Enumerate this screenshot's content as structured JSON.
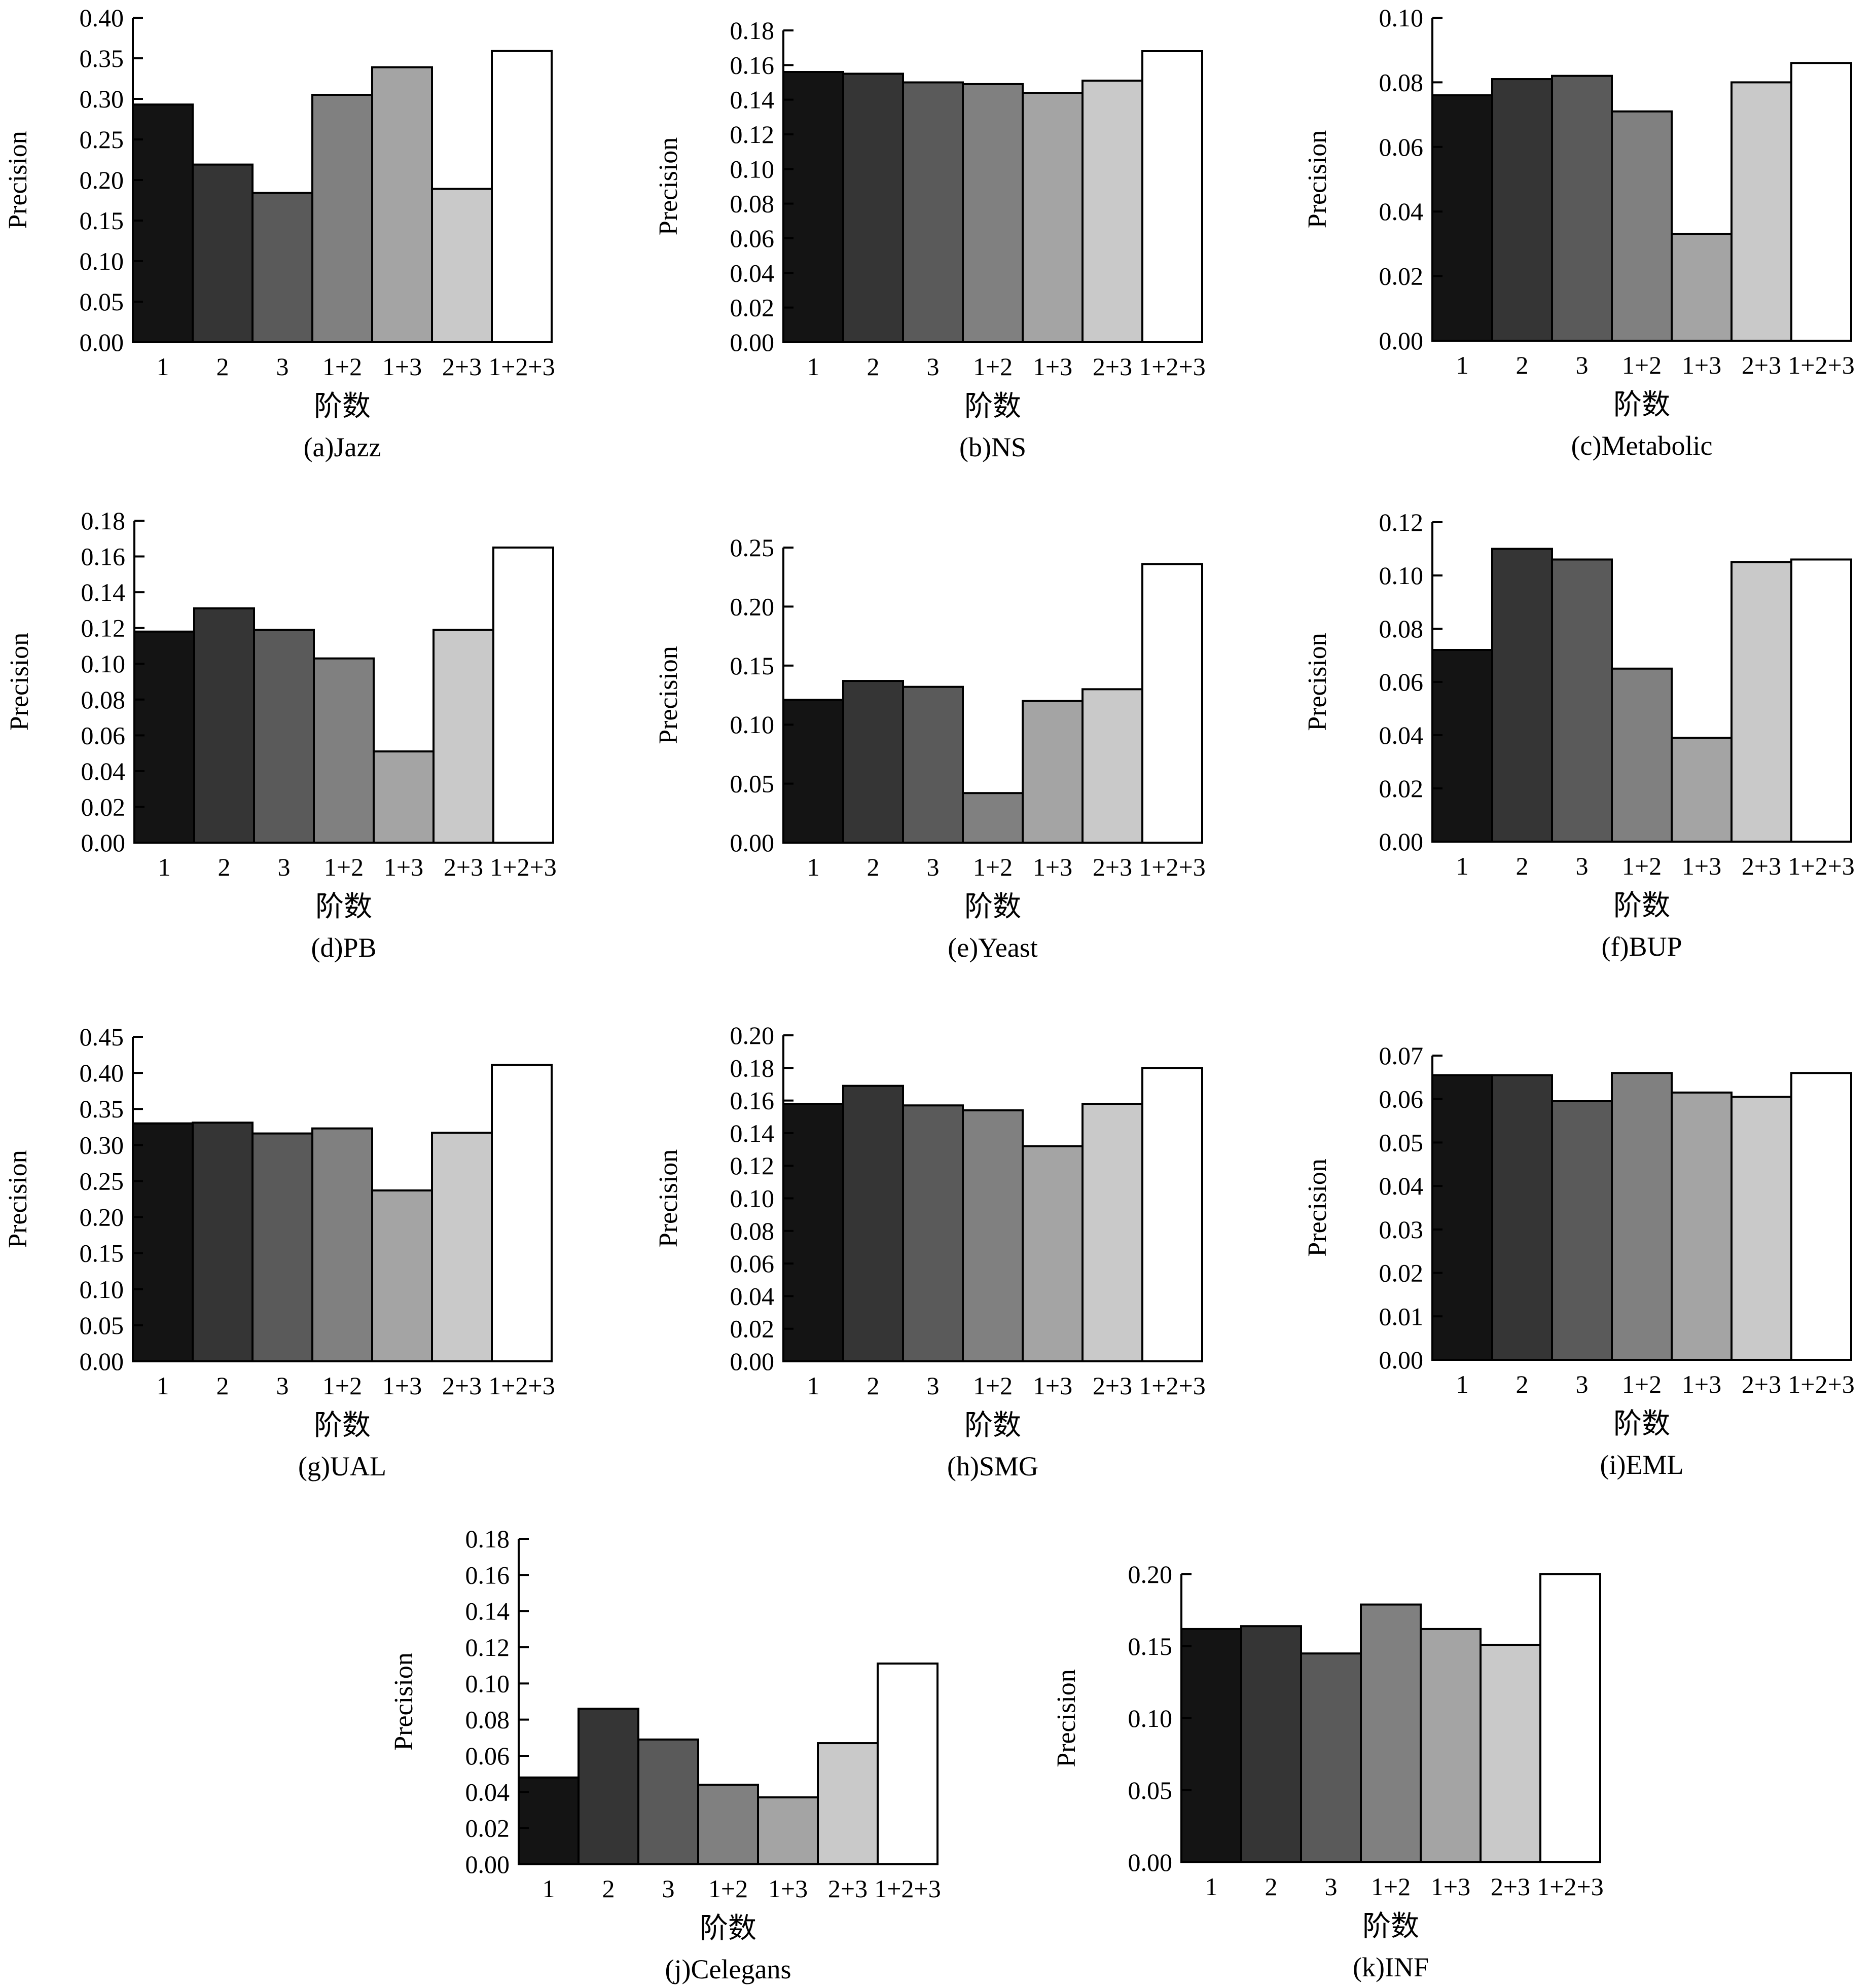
{
  "shared": {
    "categories": [
      "1",
      "2",
      "3",
      "1+2",
      "1+3",
      "2+3",
      "1+2+3"
    ],
    "bar_colors": [
      "#141414",
      "#353535",
      "#5a5a5a",
      "#808080",
      "#a4a4a4",
      "#c9c9c9",
      "#ffffff"
    ],
    "ylabel": "Precision",
    "xlabel": "阶数"
  },
  "chart_data": [
    {
      "type": "bar",
      "caption": "(a)Jazz",
      "ylabel": "Precision",
      "xlabel": "阶数",
      "categories": [
        "1",
        "2",
        "3",
        "1+2",
        "1+3",
        "2+3",
        "1+2+3"
      ],
      "values": [
        0.293,
        0.219,
        0.184,
        0.305,
        0.339,
        0.189,
        0.359
      ],
      "ylim": [
        0,
        0.4
      ],
      "yticks": [
        "0.00",
        "0.05",
        "0.10",
        "0.15",
        "0.20",
        "0.25",
        "0.30",
        "0.35",
        "0.40"
      ]
    },
    {
      "type": "bar",
      "caption": "(b)NS",
      "ylabel": "Precision",
      "xlabel": "阶数",
      "categories": [
        "1",
        "2",
        "3",
        "1+2",
        "1+3",
        "2+3",
        "1+2+3"
      ],
      "values": [
        0.156,
        0.155,
        0.15,
        0.149,
        0.144,
        0.151,
        0.168
      ],
      "ylim": [
        0,
        0.18
      ],
      "yticks": [
        "0.00",
        "0.02",
        "0.04",
        "0.06",
        "0.08",
        "0.10",
        "0.12",
        "0.14",
        "0.16",
        "0.18"
      ]
    },
    {
      "type": "bar",
      "caption": "(c)Metabolic",
      "ylabel": "Precision",
      "xlabel": "阶数",
      "categories": [
        "1",
        "2",
        "3",
        "1+2",
        "1+3",
        "2+3",
        "1+2+3"
      ],
      "values": [
        0.076,
        0.081,
        0.082,
        0.071,
        0.033,
        0.08,
        0.086
      ],
      "ylim": [
        0,
        0.1
      ],
      "yticks": [
        "0.00",
        "0.02",
        "0.04",
        "0.06",
        "0.08",
        "0.10"
      ]
    },
    {
      "type": "bar",
      "caption": "(d)PB",
      "ylabel": "Precision",
      "xlabel": "阶数",
      "categories": [
        "1",
        "2",
        "3",
        "1+2",
        "1+3",
        "2+3",
        "1+2+3"
      ],
      "values": [
        0.118,
        0.131,
        0.119,
        0.103,
        0.051,
        0.119,
        0.165
      ],
      "ylim": [
        0,
        0.18
      ],
      "yticks": [
        "0.00",
        "0.02",
        "0.04",
        "0.06",
        "0.08",
        "0.10",
        "0.12",
        "0.14",
        "0.16",
        "0.18"
      ]
    },
    {
      "type": "bar",
      "caption": "(e)Yeast",
      "ylabel": "Precision",
      "xlabel": "阶数",
      "categories": [
        "1",
        "2",
        "3",
        "1+2",
        "1+3",
        "2+3",
        "1+2+3"
      ],
      "values": [
        0.121,
        0.137,
        0.132,
        0.042,
        0.12,
        0.13,
        0.236
      ],
      "ylim": [
        0,
        0.25
      ],
      "yticks": [
        "0.00",
        "0.05",
        "0.10",
        "0.15",
        "0.20",
        "0.25"
      ]
    },
    {
      "type": "bar",
      "caption": "(f)BUP",
      "ylabel": "Precision",
      "xlabel": "阶数",
      "categories": [
        "1",
        "2",
        "3",
        "1+2",
        "1+3",
        "2+3",
        "1+2+3"
      ],
      "values": [
        0.072,
        0.11,
        0.106,
        0.065,
        0.039,
        0.105,
        0.106
      ],
      "ylim": [
        0,
        0.12
      ],
      "yticks": [
        "0.00",
        "0.02",
        "0.04",
        "0.06",
        "0.08",
        "0.10",
        "0.12"
      ]
    },
    {
      "type": "bar",
      "caption": "(g)UAL",
      "ylabel": "Precision",
      "xlabel": "阶数",
      "categories": [
        "1",
        "2",
        "3",
        "1+2",
        "1+3",
        "2+3",
        "1+2+3"
      ],
      "values": [
        0.33,
        0.331,
        0.316,
        0.323,
        0.237,
        0.317,
        0.411
      ],
      "ylim": [
        0,
        0.45
      ],
      "yticks": [
        "0.00",
        "0.05",
        "0.10",
        "0.15",
        "0.20",
        "0.25",
        "0.30",
        "0.35",
        "0.40",
        "0.45"
      ]
    },
    {
      "type": "bar",
      "caption": "(h)SMG",
      "ylabel": "Precision",
      "xlabel": "阶数",
      "categories": [
        "1",
        "2",
        "3",
        "1+2",
        "1+3",
        "2+3",
        "1+2+3"
      ],
      "values": [
        0.158,
        0.169,
        0.157,
        0.154,
        0.132,
        0.158,
        0.18
      ],
      "ylim": [
        0,
        0.2
      ],
      "yticks": [
        "0.00",
        "0.02",
        "0.04",
        "0.06",
        "0.08",
        "0.10",
        "0.12",
        "0.14",
        "0.16",
        "0.18",
        "0.20"
      ]
    },
    {
      "type": "bar",
      "caption": "(i)EML",
      "ylabel": "Precision",
      "xlabel": "阶数",
      "categories": [
        "1",
        "2",
        "3",
        "1+2",
        "1+3",
        "2+3",
        "1+2+3"
      ],
      "values": [
        0.0655,
        0.0655,
        0.0595,
        0.066,
        0.0615,
        0.0605,
        0.066
      ],
      "ylim": [
        0,
        0.07
      ],
      "yticks": [
        "0.00",
        "0.01",
        "0.02",
        "0.03",
        "0.04",
        "0.05",
        "0.06",
        "0.07"
      ]
    },
    {
      "type": "bar",
      "caption": "(j)Celegans",
      "ylabel": "Precision",
      "xlabel": "阶数",
      "categories": [
        "1",
        "2",
        "3",
        "1+2",
        "1+3",
        "2+3",
        "1+2+3"
      ],
      "values": [
        0.048,
        0.086,
        0.069,
        0.044,
        0.037,
        0.067,
        0.111
      ],
      "ylim": [
        0,
        0.18
      ],
      "yticks": [
        "0.00",
        "0.02",
        "0.04",
        "0.06",
        "0.08",
        "0.10",
        "0.12",
        "0.14",
        "0.16",
        "0.18"
      ]
    },
    {
      "type": "bar",
      "caption": "(k)INF",
      "ylabel": "Precision",
      "xlabel": "阶数",
      "categories": [
        "1",
        "2",
        "3",
        "1+2",
        "1+3",
        "2+3",
        "1+2+3"
      ],
      "values": [
        0.162,
        0.164,
        0.145,
        0.179,
        0.162,
        0.151,
        0.2
      ],
      "ylim": [
        0,
        0.2
      ],
      "yticks": [
        "0.00",
        "0.05",
        "0.10",
        "0.15",
        "0.20"
      ]
    }
  ]
}
